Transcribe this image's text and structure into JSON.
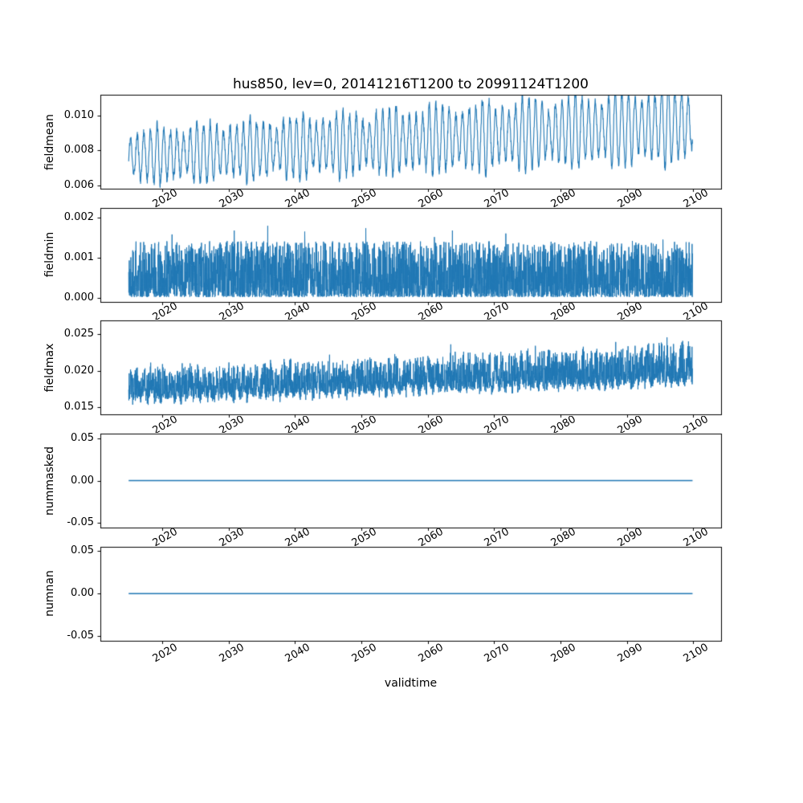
{
  "chart_data": {
    "type": "line",
    "title": "hus850, lev=0, 20141216T1200 to 20991124T1200",
    "accent_color": "#1f77b4",
    "grid": false,
    "legend": "none",
    "x": {
      "label": "validtime",
      "ticks": [
        2020,
        2030,
        2040,
        2050,
        2060,
        2070,
        2080,
        2090,
        2100
      ],
      "lim": [
        2010.7,
        2104.2
      ],
      "data_start": 2014.96,
      "data_end": 2099.9
    },
    "subplots": [
      {
        "ylabel": "fieldmean",
        "yticks": [
          0.006,
          0.008,
          0.01
        ],
        "ytick_decimals": 3,
        "ylim": [
          0.0058,
          0.0112
        ],
        "series": {
          "pattern": "seasonal-oscillation",
          "mean_start": 0.00765,
          "mean_end": 0.0095,
          "amplitude_start": 0.00135,
          "amplitude_end": 0.0019,
          "cycles_per_year": 1,
          "noise": 0.0003,
          "seed": 11
        }
      },
      {
        "ylabel": "fieldmin",
        "yticks": [
          0.0,
          0.001,
          0.002
        ],
        "ytick_decimals": 3,
        "ylim": [
          -0.0001,
          0.00225
        ],
        "series": {
          "pattern": "noise-band",
          "floor": 2e-05,
          "band_top": 0.0014,
          "spike_rate": 0.02,
          "spike_extra": 0.0006,
          "seed": 22
        }
      },
      {
        "ylabel": "fieldmax",
        "yticks": [
          0.015,
          0.02,
          0.025
        ],
        "ytick_decimals": 3,
        "ylim": [
          0.0139,
          0.0269
        ],
        "series": {
          "pattern": "trending-noise-band",
          "base_start": 0.016,
          "base_end": 0.0185,
          "band_height_start": 0.004,
          "band_height_end": 0.0052,
          "jitter": 0.0012,
          "seasonal_amplitude": 0.0005,
          "spike_rate": 0.01,
          "spike_extra": 0.002,
          "seed": 33
        }
      },
      {
        "ylabel": "nummasked",
        "yticks": [
          -0.05,
          0.0,
          0.05
        ],
        "ytick_decimals": 2,
        "ylim": [
          -0.0555,
          0.0555
        ],
        "series": {
          "pattern": "constant",
          "value": 0.0
        }
      },
      {
        "ylabel": "numnan",
        "yticks": [
          -0.05,
          0.0,
          0.05
        ],
        "ytick_decimals": 2,
        "ylim": [
          -0.0555,
          0.0555
        ],
        "series": {
          "pattern": "constant",
          "value": 0.0
        }
      }
    ]
  }
}
